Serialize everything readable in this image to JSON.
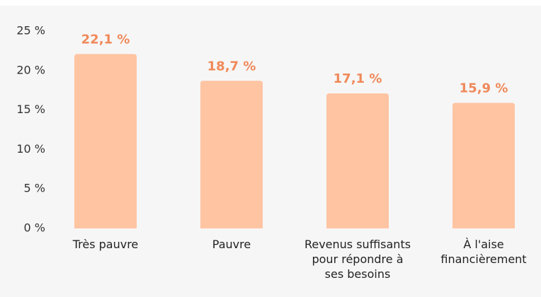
{
  "chart_data": {
    "type": "bar",
    "categories": [
      "Très pauvre",
      "Pauvre",
      "Revenus suffisants pour répondre à ses besoins",
      "À l'aise financièrement"
    ],
    "values": [
      22.1,
      18.7,
      17.1,
      15.9
    ],
    "value_labels": [
      "22,1 %",
      "18,7 %",
      "17,1 %",
      "15,9 %"
    ],
    "color": "#ffc4a2",
    "label_color": "#f0895a",
    "ylim": [
      0,
      25
    ],
    "yticks": [
      {
        "value": 0,
        "label": "0 %"
      },
      {
        "value": 5,
        "label": "5 %"
      },
      {
        "value": 10,
        "label": "10 %"
      },
      {
        "value": 15,
        "label": "15 %"
      },
      {
        "value": 20,
        "label": "20 %"
      },
      {
        "value": 25,
        "label": "25 %"
      }
    ],
    "grid": false
  }
}
